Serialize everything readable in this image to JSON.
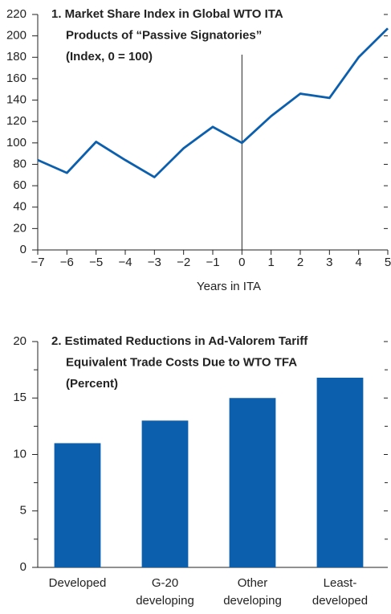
{
  "chart_data": [
    {
      "type": "line",
      "title": [
        "1. Market Share Index in Global WTO ITA",
        "Products of “Passive Signatories”",
        "(Index, 0 = 100)"
      ],
      "x_label": "Years in ITA",
      "x": [
        -7,
        -6,
        -5,
        -4,
        -3,
        -2,
        -1,
        0,
        1,
        2,
        3,
        4,
        5
      ],
      "values": [
        84,
        72,
        101,
        84,
        68,
        95,
        115,
        100,
        125,
        146,
        142,
        180,
        207
      ],
      "color": "#0b5fad",
      "xlim": [
        -7,
        5
      ],
      "xticks": [
        {
          "value": -7,
          "label": "−7"
        },
        {
          "value": -6,
          "label": "−6"
        },
        {
          "value": -5,
          "label": "−5"
        },
        {
          "value": -4,
          "label": "−4"
        },
        {
          "value": -3,
          "label": "−3"
        },
        {
          "value": -2,
          "label": "−2"
        },
        {
          "value": -1,
          "label": "−1"
        },
        0,
        1,
        2,
        3,
        4,
        5
      ],
      "ylim": [
        0,
        220
      ],
      "yticks": [
        0,
        20,
        40,
        60,
        80,
        100,
        120,
        140,
        160,
        180,
        200,
        220
      ],
      "reference_line_x": 0
    },
    {
      "type": "bar",
      "title": [
        "2. Estimated Reductions in Ad-Valorem Tariff",
        "Equivalent Trade Costs Due to WTO TFA",
        "(Percent)"
      ],
      "categories": [
        [
          "Developed"
        ],
        [
          "G-20",
          "developing"
        ],
        [
          "Other",
          "developing"
        ],
        [
          "Least-",
          "developed"
        ]
      ],
      "values": [
        11,
        13,
        15,
        16.8
      ],
      "color": "#0b5fad",
      "ylim": [
        0,
        20
      ],
      "yticks": [
        0,
        5,
        10,
        15,
        20
      ],
      "minor_yticks": [
        2.5,
        7.5,
        12.5,
        17.5
      ]
    }
  ]
}
